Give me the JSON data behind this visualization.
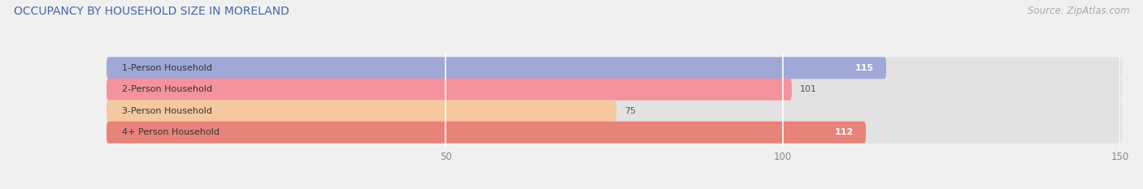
{
  "title": "OCCUPANCY BY HOUSEHOLD SIZE IN MORELAND",
  "source": "Source: ZipAtlas.com",
  "categories": [
    "1-Person Household",
    "2-Person Household",
    "3-Person Household",
    "4+ Person Household"
  ],
  "values": [
    115,
    101,
    75,
    112
  ],
  "bar_colors": [
    "#a0a8d8",
    "#f4929e",
    "#f5c8a0",
    "#e8837a"
  ],
  "label_colors": [
    "white",
    "dark",
    "dark",
    "white"
  ],
  "xlim": [
    0,
    150
  ],
  "xticks": [
    50,
    100,
    150
  ],
  "background_color": "#f0f0f0",
  "bar_background_color": "#e2e2e2",
  "title_color": "#4466aa",
  "source_color": "#aaaaaa",
  "title_fontsize": 10,
  "source_fontsize": 8.5,
  "cat_fontsize": 8,
  "value_fontsize": 8,
  "tick_fontsize": 8.5,
  "bar_height": 0.42
}
